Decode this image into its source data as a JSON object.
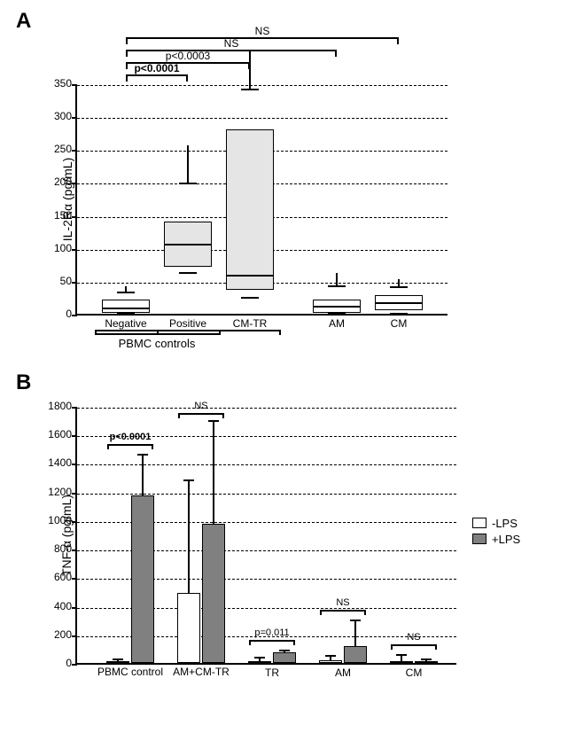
{
  "panelA": {
    "label": "A",
    "type": "boxplot",
    "ylabel": "IL-2Rα (pg/mL)",
    "ylim": [
      0,
      350
    ],
    "ytick_step": 50,
    "yticks": [
      0,
      50,
      100,
      150,
      200,
      250,
      300,
      350
    ],
    "background_color": "#ffffff",
    "grid_color": "#000000",
    "box_fill": "#e5e5e5",
    "box_border": "#000000",
    "line_width": 1.5,
    "categories": [
      "Negative",
      "Positive",
      "CM-TR",
      "AM",
      "CM"
    ],
    "pbmc_group_label": "PBMC controls",
    "boxes": [
      {
        "q1": 2,
        "median": 6,
        "q3": 22,
        "wlo": 0,
        "whi": 32,
        "fill": "#ffffff"
      },
      {
        "q1": 72,
        "median": 103,
        "q3": 140,
        "wlo": 62,
        "whi": 198,
        "fill": "#e5e5e5"
      },
      {
        "q1": 36,
        "median": 55,
        "q3": 280,
        "wlo": 24,
        "whi": 340,
        "fill": "#e5e5e5"
      },
      {
        "q1": 2,
        "median": 8,
        "q3": 22,
        "wlo": 0,
        "whi": 42,
        "fill": "#ffffff"
      },
      {
        "q1": 6,
        "median": 14,
        "q3": 28,
        "wlo": 0,
        "whi": 40,
        "fill": "#ffffff"
      }
    ],
    "sig": [
      {
        "from": 0,
        "to": 1,
        "label": "p<0.0001",
        "level": 0,
        "bold": true
      },
      {
        "from": 0,
        "to": 2,
        "label": "p<0.0003",
        "level": 1,
        "bold": false
      },
      {
        "from": 0,
        "to": 3,
        "label": "NS",
        "level": 2,
        "bold": false
      },
      {
        "from": 0,
        "to": 4,
        "label": "NS",
        "level": 3,
        "bold": false
      }
    ]
  },
  "panelB": {
    "label": "B",
    "type": "grouped-bar",
    "ylabel": "TNF-α (pg/mL)",
    "ylim": [
      0,
      1800
    ],
    "ytick_step": 200,
    "yticks": [
      0,
      200,
      400,
      600,
      800,
      1000,
      1200,
      1400,
      1600,
      1800
    ],
    "background_color": "#ffffff",
    "grid_color": "#000000",
    "bar_border": "#000000",
    "series": [
      {
        "name": "-LPS",
        "color": "#ffffff"
      },
      {
        "name": "+LPS",
        "color": "#808080"
      }
    ],
    "categories": [
      "PBMC control",
      "AM+CM-TR",
      "TR",
      "AM",
      "CM"
    ],
    "bar_width": 0.42,
    "data": [
      {
        "minus": {
          "mean": 12,
          "err": 10
        },
        "plus": {
          "mean": 1175,
          "err": 285
        }
      },
      {
        "minus": {
          "mean": 490,
          "err": 790
        },
        "plus": {
          "mean": 975,
          "err": 720
        }
      },
      {
        "minus": {
          "mean": 12,
          "err": 28
        },
        "plus": {
          "mean": 72,
          "err": 18
        }
      },
      {
        "minus": {
          "mean": 20,
          "err": 30
        },
        "plus": {
          "mean": 115,
          "err": 185
        }
      },
      {
        "minus": {
          "mean": 14,
          "err": 40
        },
        "plus": {
          "mean": 14,
          "err": 12
        }
      }
    ],
    "sig": [
      {
        "group": 0,
        "label": "p<0.0001",
        "bold": true
      },
      {
        "group": 1,
        "label": "NS",
        "bold": false
      },
      {
        "group": 2,
        "label": "p=0.011",
        "bold": false
      },
      {
        "group": 3,
        "label": "NS",
        "bold": false
      },
      {
        "group": 4,
        "label": "NS",
        "bold": false
      }
    ],
    "legend_labels": [
      "-LPS",
      "+LPS"
    ]
  },
  "label_fontsize": 12,
  "panel_label_fontsize": 24
}
